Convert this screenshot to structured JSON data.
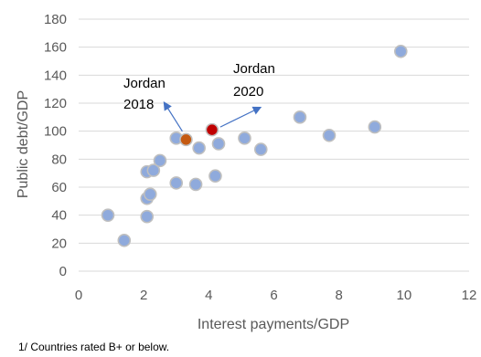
{
  "chart_data": {
    "type": "scatter",
    "xlabel": "Interest payments/GDP",
    "ylabel": "Public debt/GDP",
    "xlim": [
      0,
      12
    ],
    "ylim": [
      0,
      180
    ],
    "xticks": [
      "0",
      "2",
      "4",
      "6",
      "8",
      "10",
      "12"
    ],
    "yticks": [
      "0",
      "20",
      "40",
      "60",
      "80",
      "100",
      "120",
      "140",
      "160",
      "180"
    ],
    "grid": "horizontal",
    "colors": {
      "default": "#8faadc",
      "jordan_2018": "#c55a11",
      "jordan_2020": "#c00000",
      "arrow": "#4472c4"
    },
    "points": [
      {
        "x": 0.9,
        "y": 40
      },
      {
        "x": 1.4,
        "y": 22
      },
      {
        "x": 2.1,
        "y": 71
      },
      {
        "x": 2.1,
        "y": 52
      },
      {
        "x": 2.1,
        "y": 39
      },
      {
        "x": 2.2,
        "y": 55
      },
      {
        "x": 2.3,
        "y": 72
      },
      {
        "x": 2.5,
        "y": 79
      },
      {
        "x": 3.0,
        "y": 95
      },
      {
        "x": 3.0,
        "y": 63
      },
      {
        "x": 3.6,
        "y": 62
      },
      {
        "x": 3.7,
        "y": 88
      },
      {
        "x": 4.2,
        "y": 68
      },
      {
        "x": 4.3,
        "y": 91
      },
      {
        "x": 5.1,
        "y": 95
      },
      {
        "x": 5.6,
        "y": 87
      },
      {
        "x": 6.8,
        "y": 110
      },
      {
        "x": 7.7,
        "y": 97
      },
      {
        "x": 9.1,
        "y": 103
      },
      {
        "x": 9.9,
        "y": 157
      },
      {
        "x": 3.3,
        "y": 94,
        "highlight": "jordan_2018"
      },
      {
        "x": 4.1,
        "y": 101,
        "highlight": "jordan_2020"
      }
    ],
    "annotations": [
      {
        "id": "jordan_2018",
        "lines": [
          "Jordan",
          "2018"
        ]
      },
      {
        "id": "jordan_2020",
        "lines": [
          "Jordan",
          "2020"
        ]
      }
    ]
  },
  "footnote": "1/ Countries rated B+ or below."
}
